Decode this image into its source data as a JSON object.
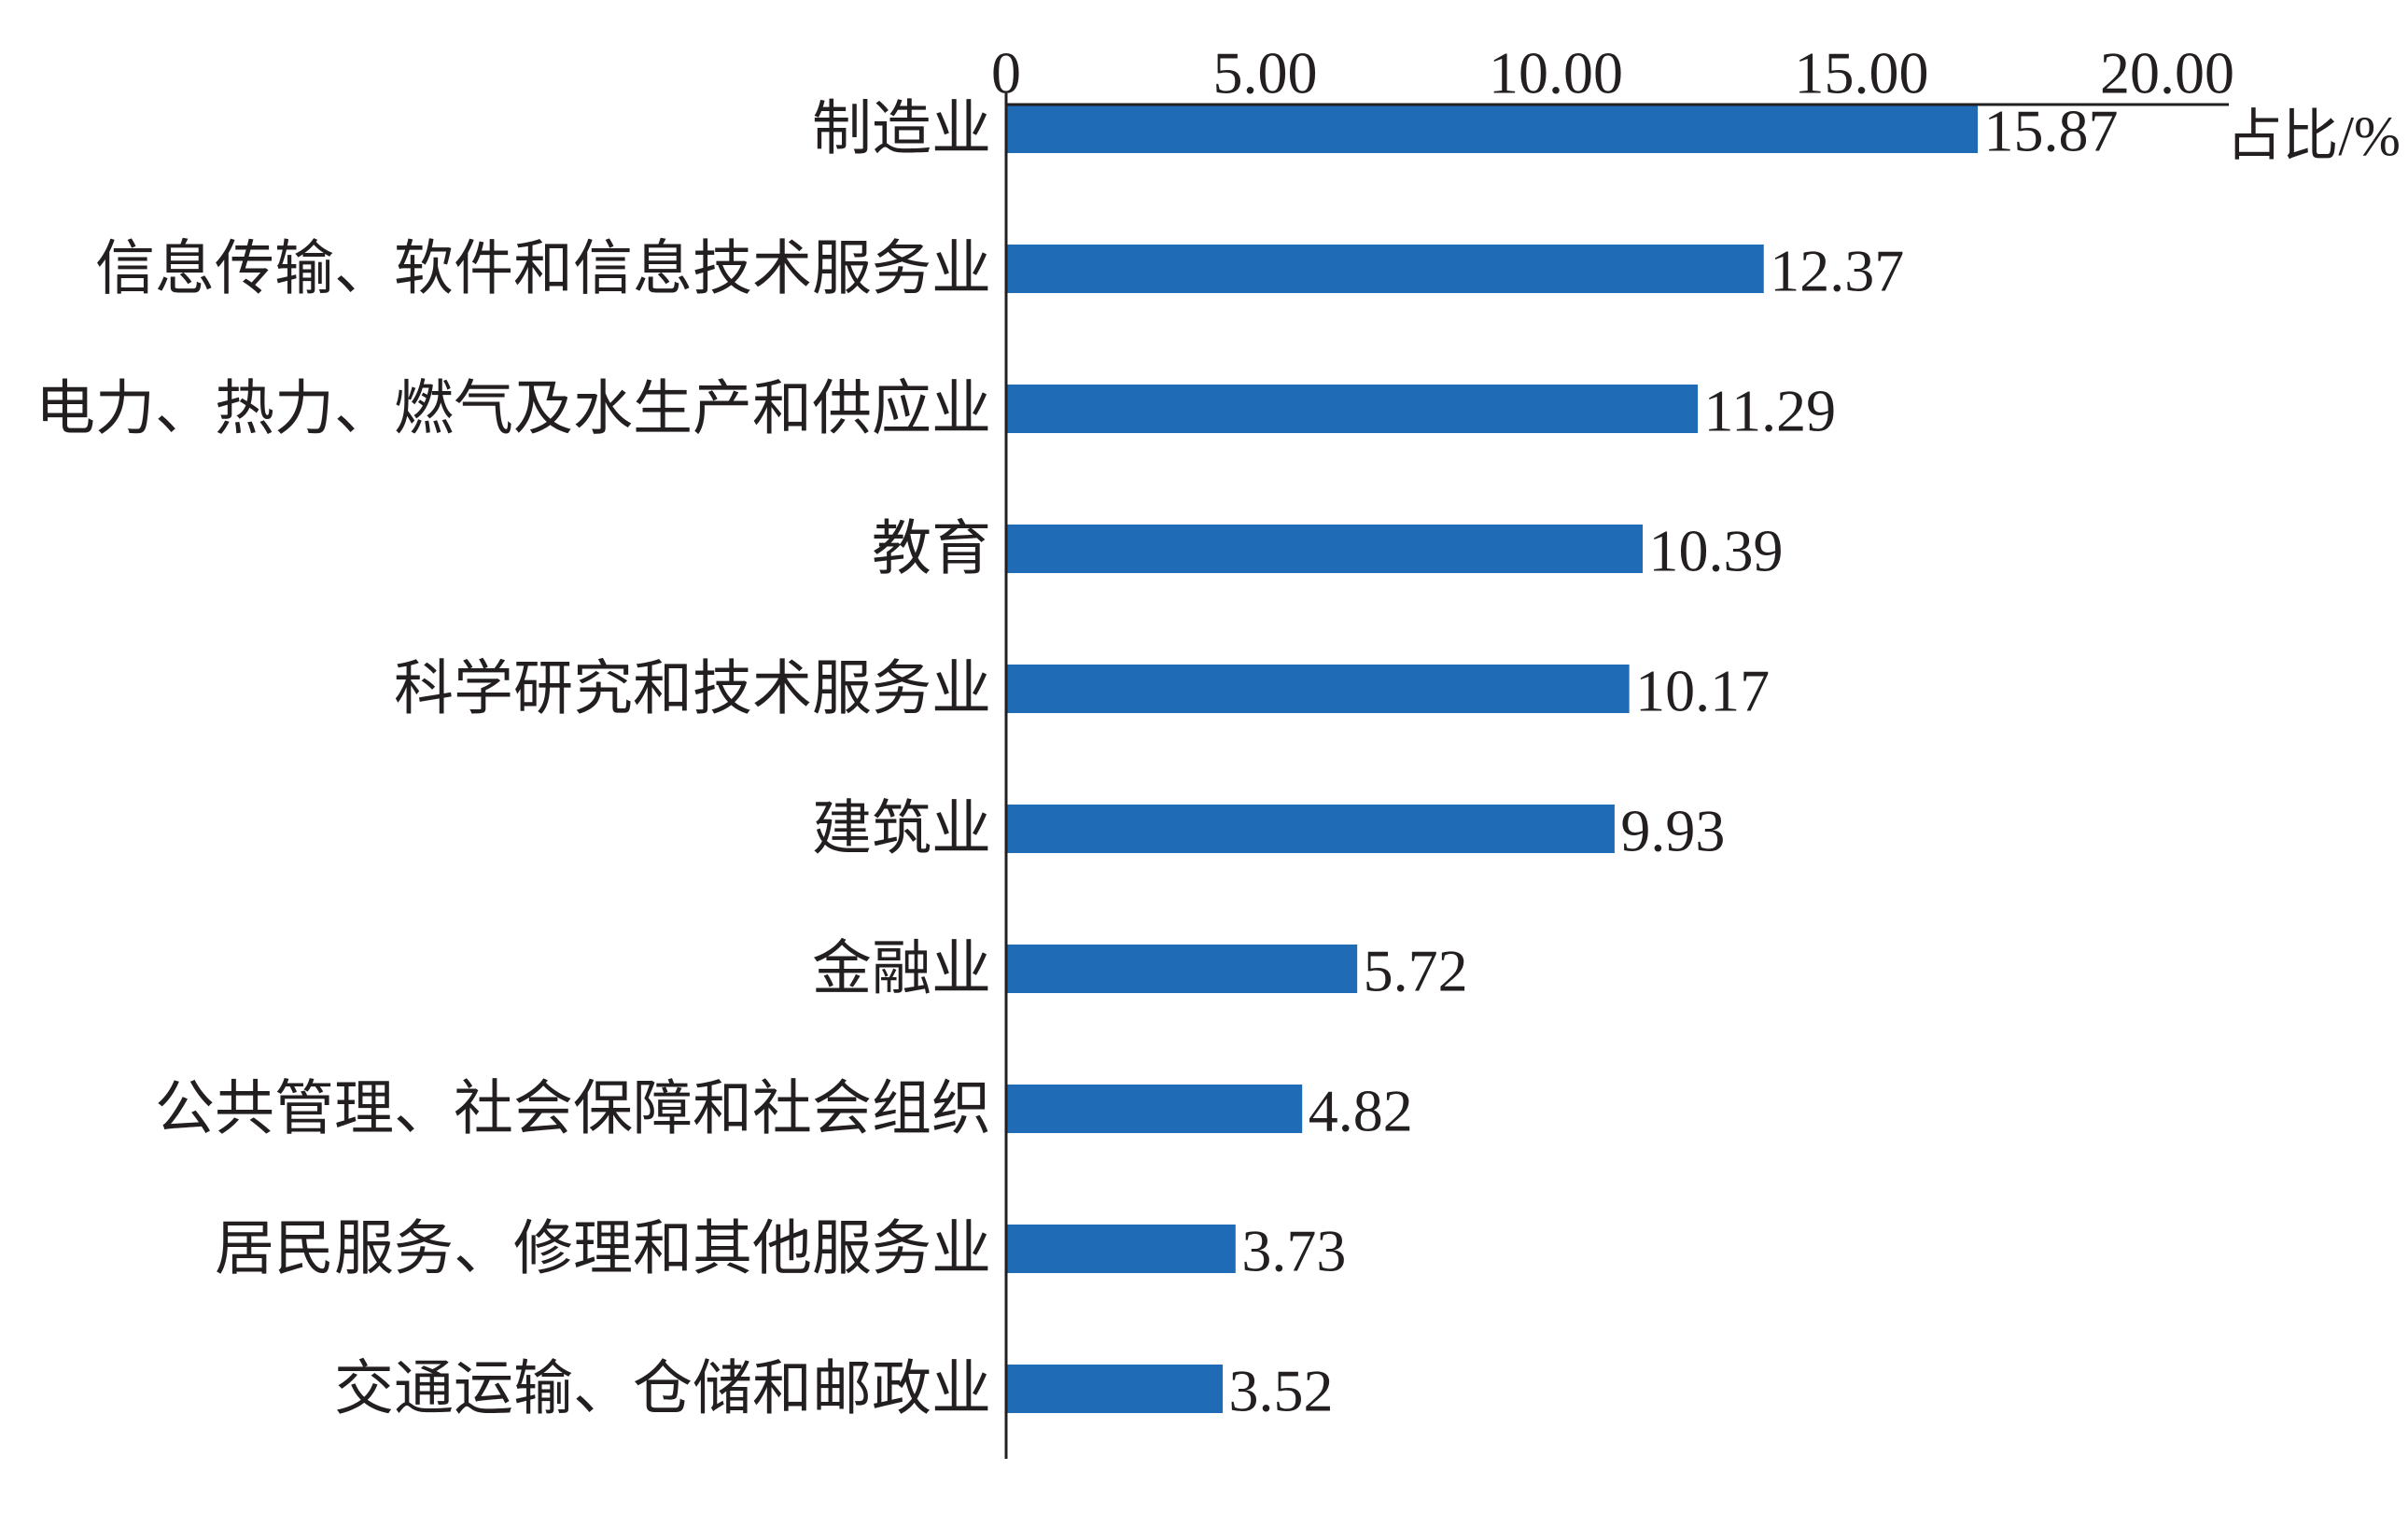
{
  "chart_data": {
    "type": "bar",
    "orientation": "horizontal",
    "categories": [
      "制造业",
      "信息传输、软件和信息技术服务业",
      "电力、热力、燃气及水生产和供应业",
      "教育",
      "科学研究和技术服务业",
      "建筑业",
      "金融业",
      "公共管理、社会保障和社会组织",
      "居民服务、修理和其他服务业",
      "交通运输、仓储和邮政业"
    ],
    "values": [
      15.87,
      12.37,
      11.29,
      10.39,
      10.17,
      9.93,
      5.72,
      4.82,
      3.73,
      3.52
    ],
    "xlabel": "占比/%",
    "xlim": [
      0,
      20
    ],
    "x_ticks": [
      0,
      5,
      10,
      15,
      20
    ],
    "x_tick_labels": [
      "0",
      "5.00",
      "10.00",
      "15.00",
      "20.00"
    ],
    "x_axis_position": "top",
    "grid": false,
    "bar_color": "#1f6bb5"
  }
}
